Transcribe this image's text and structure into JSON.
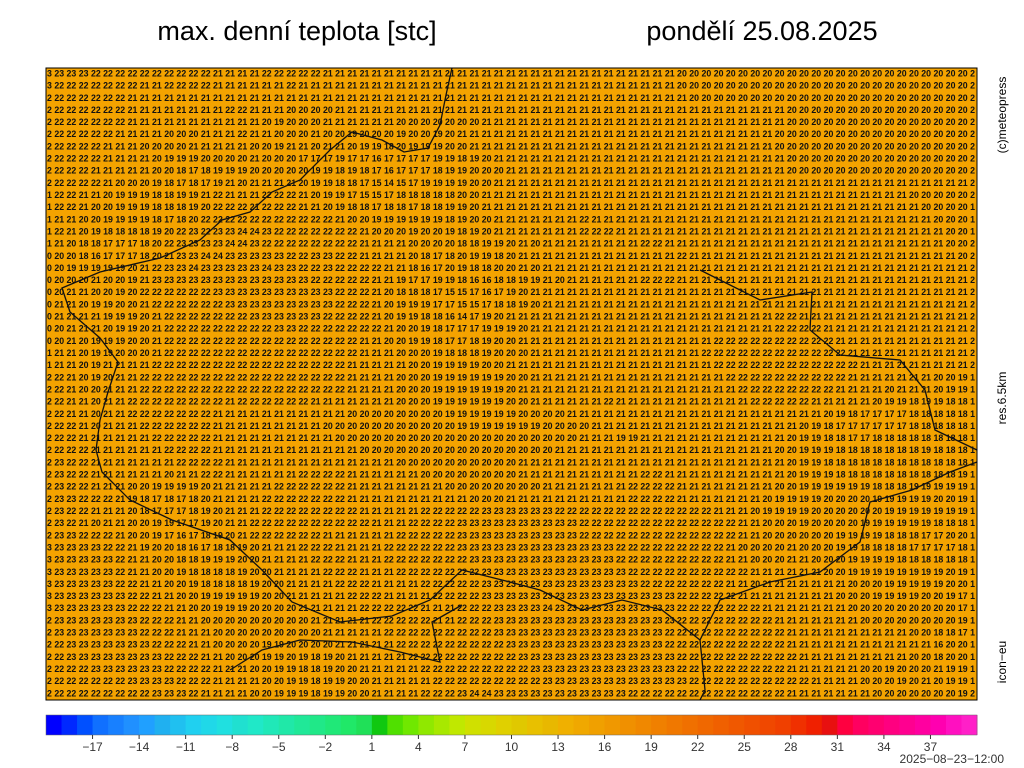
{
  "header": {
    "title": "max. denní teplota [stc]",
    "date": "pondělí 25.08.2025"
  },
  "side_labels": {
    "copyright": "(c)meteopress",
    "resolution": "res.6.5km",
    "model": "icon−eu"
  },
  "run_time": "2025−08−23−12:00",
  "map": {
    "background": "#f4a300",
    "rows": [
      "3 23 23 23 22 22 22 22 22 22 22 22 22 22 21 21 21 21 22 22 22 22 22 21 21 21 21 21 21 21 21 21 21 21 21 21 21 21 21 21 21 21 21 21 21 21 21 21 21 21 21 21 20 20 20 20 20 20 20 20 20 20 20 20 20 20 20 20 20 20 20 20 20 20 20 20 2",
      "3 22 22 22 22 22 22 22 21 21 22 22 22 22 21 21 21 21 21 21 22 21 21 21 21 21 21 21 21 21 21 21 21 21 21 21 21 21 21 21 21 21 21 21 21 21 21 21 21 21 21 21 20 20 20 20 20 20 20 20 20 20 20 20 20 20 20 20 20 20 20 20 20 20 20 20 2",
      "2 22 22 22 22 22 22 21 21 21 21 21 21 21 21 21 21 21 21 21 21 21 21 21 21 21 21 21 21 21 21 21 21 21 21 21 21 21 21 21 21 21 21 21 21 21 21 21 21 21 21 21 21 20 20 20 20 20 20 20 20 20 20 20 20 20 20 20 20 20 20 20 20 20 20 20 2",
      "2 22 22 22 22 22 22 21 21 21 21 21 21 21 21 22 22 21 21 21 20 20 20 20 21 21 21 21 21 21 21 21 21 21 21 21 21 21 21 21 21 21 21 21 21 21 21 21 21 21 21 21 21 21 21 21 21 21 21 21 21 20 20 20 20 20 20 20 20 20 20 20 20 20 20 20 2",
      "2 22 22 22 22 22 22 21 21 21 21 21 21 21 21 21 21 21 20 19 20 20 20 21 21 21 21 21 21 20 20 20 20 20 20 20 21 21 21 21 21 21 21 21 21 21 21 21 21 21 21 21 21 21 21 21 21 21 21 21 21 20 20 20 20 20 20 20 20 20 20 20 20 20 20 20 2",
      "2 22 22 22 22 22 21 21 21 21 20 20 20 21 21 21 22 21 21 20 20 20 21 20 20 19 20 20 20 19 20 20 19 20 21 21 21 21 21 21 21 21 21 21 21 21 21 21 21 21 21 21 21 21 21 21 21 21 21 21 20 20 20 20 20 20 20 20 20 20 20 20 20 20 20 20 2",
      "2 22 22 22 22 21 21 21 20 20 20 20 21 21 21 21 21 20 20 19 21 21 20 21 21 20 19 19 18 20 19 19 19 20 20 21 21 21 21 21 21 21 21 21 21 21 21 21 21 21 21 21 21 21 21 21 21 21 21 21 20 20 20 20 20 20 20 20 20 20 20 20 20 20 20 20 2",
      "2 22 22 22 22 21 21 21 21 20 19 19 19 20 20 20 20 21 20 20 20 17 17 17 19 17 17 16 17 17 17 17 19 19 18 19 20 21 21 21 21 21 21 21 21 21 21 21 21 21 21 21 21 21 21 21 21 21 21 21 21 20 20 20 20 20 20 20 20 20 20 20 20 20 20 20 2",
      "2 22 22 22 21 21 21 21 21 20 20 18 17 18 19 19 19 20 20 20 20 20 19 19 18 19 18 17 16 17 17 17 18 19 19 20 20 20 21 21 21 21 21 21 21 21 21 21 21 21 21 21 21 21 21 21 21 21 21 21 21 20 20 20 20 20 20 20 20 20 20 20 20 20 20 20 2",
      "2 22 22 22 22 21 20 20 20 19 18 17 18 17 19 21 20 21 21 21 21 20 19 19 18 18 17 15 14 15 17 19 19 19 19 20 20 21 21 21 21 21 21 21 21 21 21 21 21 21 21 21 21 21 21 21 21 21 21 21 21 21 21 21 21 21 21 21 21 21 21 21 21 21 21 21 2",
      "1 22 22 21 21 20 19 19 19 18 18 19 19 21 22 21 21 21 22 22 22 21 20 19 19 17 15 15 17 18 18 18 18 18 20 20 21 21 21 21 21 21 21 21 21 21 21 21 21 21 21 21 21 21 21 21 21 21 21 21 21 21 21 21 21 21 21 21 21 21 21 20 20 20 20 20 2",
      "1 22 22 21 20 20 19 19 19 18 18 18 19 20 22 22 22 21 22 22 22 21 21 20 19 18 18 17 18 18 17 18 18 19 19 20 21 21 21 21 21 21 21 21 21 21 21 21 21 21 21 21 21 21 21 21 21 21 21 21 21 21 21 21 21 21 21 21 21 21 21 21 20 20 20 20 1",
      "1 21 21 20 20 19 19 19 19 18 17 18 20 22 22 22 22 22 22 22 22 22 22 22 21 20 20 19 19 19 19 19 19 18 19 20 20 21 21 21 21 21 21 21 22 21 21 21 21 21 21 21 21 21 21 21 21 21 21 21 21 21 21 21 21 21 21 21 21 21 21 21 21 20 20 20 1",
      "1 22 21 20 19 18 18 18 18 19 20 22 23 22 23 23 24 24 23 22 22 22 22 22 22 22 21 20 20 20 19 20 20 19 18 19 20 21 21 21 21 21 21 21 22 22 22 21 21 21 21 21 21 21 21 21 21 21 21 21 21 21 21 21 21 21 21 21 21 21 21 21 21 21 20 20 1",
      "1 21 20 18 18 17 17 17 18 20 22 23 23 23 23 24 24 23 22 22 22 22 22 22 22 22 21 21 21 21 20 20 20 20 18 18 19 19 20 21 20 21 21 21 21 21 21 21 21 22 22 21 21 21 21 21 21 21 21 21 21 21 21 21 21 21 21 21 21 21 21 21 21 21 20 20 2",
      "0 20 20 18 16 17 17 17 18 20 21 23 23 24 24 23 23 23 23 23 22 22 23 23 22 22 21 21 21 21 20 18 17 18 20 19 19 18 20 21 21 21 21 21 21 21 21 21 21 21 21 21 22 21 21 21 21 21 21 21 21 21 21 21 21 21 21 21 21 21 21 21 21 21 21 20 2",
      "0 20 19 19 19 19 19 20 21 22 23 23 24 23 23 23 23 23 24 23 23 22 22 23 22 22 22 22 21 21 18 16 17 20 19 18 18 20 20 21 20 21 21 21 21 21 21 21 21 21 21 21 21 21 21 21 21 21 21 21 21 21 21 21 21 21 21 21 21 21 21 21 21 21 21 21 2",
      "0 20 20 20 21 20 20 19 21 23 23 23 23 23 23 23 23 23 23 23 23 23 22 22 22 22 22 21 21 19 17 17 19 19 18 16 16 18 18 19 19 21 20 21 21 21 21 21 21 22 22 22 21 21 21 21 21 21 21 21 21 21 21 21 21 21 21 21 21 21 21 21 21 21 21 21 2",
      "0 20 21 21 20 20 19 20 22 22 22 22 22 22 23 23 23 23 23 23 23 23 23 23 22 22 22 21 20 18 18 18 17 15 15 17 16 17 19 20 21 21 21 21 21 21 21 21 21 21 21 21 21 21 21 21 21 21 21 21 21 21 21 21 21 21 21 21 21 21 21 21 21 21 21 21 2",
      "0 21 21 20 19 19 20 20 21 22 22 22 22 22 22 23 23 23 23 23 23 23 23 23 22 22 22 21 20 19 19 19 17 17 15 15 17 18 18 19 20 21 21 21 21 21 21 21 21 21 21 21 21 21 21 21 21 21 21 21 21 21 21 21 21 21 21 21 21 21 21 21 21 21 21 21 2",
      "0 21 21 21 21 19 19 19 20 21 22 22 22 22 22 22 22 23 23 23 23 23 23 22 22 22 22 21 20 19 19 18 18 16 14 17 19 20 21 21 21 21 21 21 21 21 21 21 21 21 21 21 21 21 21 21 21 21 21 21 22 22 21 21 21 21 21 21 21 21 21 21 21 21 21 21 2",
      "0 20 21 21 21 20 19 19 20 21 22 22 22 22 22 22 22 22 22 23 23 22 22 22 22 22 22 22 21 20 20 19 18 17 17 17 19 19 19 20 21 21 21 21 21 21 21 21 21 21 21 21 21 21 21 21 21 21 21 21 22 22 22 22 21 21 21 21 21 21 21 21 21 21 21 21 2",
      "0 20 21 20 19 19 19 20 20 21 22 22 22 22 22 22 22 22 22 22 22 22 22 22 22 22 21 21 20 20 19 19 18 17 17 18 19 20 20 21 21 21 21 21 21 21 21 21 21 21 21 21 21 21 21 22 22 22 22 22 22 22 22 22 22 21 21 21 21 21 21 21 21 21 21 21 2",
      "1 21 21 20 19 19 20 20 20 21 22 22 22 22 22 22 22 22 22 22 22 22 22 22 22 22 21 21 21 20 20 20 19 18 18 18 19 20 20 20 21 21 21 21 21 21 21 21 21 21 21 21 21 21 22 22 22 22 22 22 22 22 22 22 22 22 21 21 21 21 21 21 21 21 21 21 2",
      "1 21 21 20 19 21 21 21 21 22 22 22 22 22 22 22 22 22 22 22 22 22 22 22 22 21 21 21 21 21 20 20 19 19 19 19 20 20 21 21 21 21 21 21 21 21 21 21 21 21 21 21 21 21 21 22 22 22 22 22 22 22 22 22 22 22 22 21 21 21 21 21 21 21 21 21 2",
      "2 22 21 20 19 20 21 21 22 22 22 22 22 22 22 22 22 22 22 22 22 22 22 22 22 21 21 21 21 20 20 20 19 19 19 19 19 19 20 20 21 21 21 21 21 21 21 21 21 21 21 21 21 21 21 21 22 22 22 22 22 22 22 22 22 22 21 21 21 21 21 21 21 20 20 19 1",
      "2 22 21 20 20 21 21 21 22 22 22 22 22 22 22 22 22 22 22 22 22 22 22 22 22 21 21 21 21 20 20 20 19 19 19 19 19 19 20 21 21 21 21 21 21 21 21 21 21 21 21 21 21 21 21 21 21 22 22 22 22 22 22 22 22 21 21 21 21 20 21 21 21 20 19 19 1",
      "2 22 21 21 20 21 21 22 22 22 22 22 22 22 22 21 22 22 22 22 22 22 21 21 21 21 21 21 21 20 20 20 19 19 19 19 19 19 20 20 21 21 21 21 21 21 22 21 21 21 21 21 21 21 21 21 21 21 22 22 22 22 22 21 21 21 21 21 20 19 19 18 19 19 18 18 1",
      "2 22 21 21 20 21 21 22 22 22 22 22 22 22 21 21 21 21 21 21 21 21 21 21 21 20 20 20 20 20 20 20 20 19 19 19 19 19 19 20 20 20 20 21 21 21 21 21 21 21 21 21 21 21 21 21 21 21 21 21 21 21 21 21 20 19 18 17 17 17 17 18 18 18 18 18 1",
      "2 22 22 21 20 21 21 21 22 22 22 22 22 22 21 21 21 21 21 21 21 21 21 20 20 20 20 20 20 20 20 20 20 20 19 19 19 19 19 19 19 20 20 20 20 21 21 21 21 21 21 21 21 21 21 21 21 21 21 21 21 21 20 19 18 17 17 17 17 17 17 18 18 18 18 18 1",
      "2 22 22 21 21 21 21 21 21 22 22 22 22 22 21 21 21 21 21 21 21 21 21 21 20 20 20 20 20 20 20 20 20 20 20 20 20 20 20 20 20 20 20 20 21 21 21 19 19 21 21 21 21 21 21 21 21 21 21 21 21 20 19 19 18 18 17 17 18 18 18 18 18 18 18 18 1",
      "2 22 22 22 21 21 21 21 21 21 22 22 22 22 21 21 21 21 21 21 21 21 21 21 21 21 20 20 20 20 20 20 20 20 20 20 20 20 20 20 20 20 21 21 21 21 21 21 21 21 21 21 21 21 21 21 21 21 21 21 20 20 19 19 19 18 18 18 18 18 18 18 19 18 18 18 1",
      "2 23 22 22 21 21 21 21 21 21 21 22 22 22 22 21 21 21 21 21 21 21 21 21 21 21 21 21 21 20 20 20 20 20 20 20 20 20 20 21 21 21 21 21 21 21 21 21 21 21 21 21 21 21 21 21 21 21 21 21 21 20 19 19 18 18 18 18 18 18 18 18 18 18 18 18 1",
      "2 23 22 22 21 21 21 21 21 21 20 21 21 22 22 21 21 21 21 21 21 22 22 22 22 21 21 21 21 21 21 20 20 20 20 20 20 20 20 21 21 21 21 21 21 21 21 21 21 22 22 21 21 21 21 21 21 21 21 21 21 20 19 19 19 18 18 18 18 18 18 18 18 18 18 19 1",
      "2 23 22 22 21 21 21 20 20 19 19 19 19 20 21 21 21 21 21 22 22 22 22 22 22 21 21 21 21 21 21 21 21 20 20 20 20 20 20 20 20 21 21 21 21 21 21 21 22 22 22 22 21 21 21 21 21 21 21 21 20 20 19 19 19 19 19 19 18 18 18 19 19 19 19 19 1",
      "2 23 23 22 22 22 21 19 18 17 18 17 18 20 21 21 21 21 22 22 22 22 22 22 22 21 21 21 21 21 21 21 21 21 21 20 20 20 21 21 21 21 21 21 21 21 21 21 22 22 22 22 21 21 21 21 21 21 21 20 19 19 19 19 20 20 20 20 19 19 19 19 19 20 20 19 1",
      "2 23 22 22 21 21 21 20 18 17 17 17 18 19 20 21 21 21 22 22 22 22 22 22 22 22 21 21 21 21 21 22 22 22 22 22 23 23 23 23 23 23 22 22 22 22 22 22 22 22 22 22 22 22 22 21 21 21 20 19 19 19 19 20 20 20 20 20 20 19 19 19 19 19 19 19 1",
      "2 23 22 21 20 21 21 20 20 19 19 17 17 19 20 21 21 22 22 22 22 22 22 22 22 22 22 21 21 21 22 22 22 22 23 23 23 23 23 23 23 23 23 23 22 22 22 22 22 22 22 22 22 22 22 22 22 21 21 20 20 20 19 20 20 20 20 19 19 19 19 19 19 18 18 18 1",
      "2 23 23 22 22 22 21 20 20 19 17 16 17 18 19 20 21 22 22 22 22 22 22 21 21 21 21 21 21 22 22 22 22 22 23 23 23 23 23 23 23 23 23 23 22 22 22 22 22 22 22 22 22 22 22 22 22 21 21 20 20 20 20 20 20 19 19 19 19 18 18 18 17 17 20 20 1",
      "3 23 23 23 23 22 22 21 19 20 20 18 16 17 18 18 19 20 21 21 21 22 22 22 21 21 21 21 22 22 22 22 22 22 23 23 23 23 23 23 23 23 23 23 23 23 23 22 22 22 22 22 22 22 22 22 21 20 20 20 20 21 20 20 20 19 19 18 18 18 18 17 17 17 17 18 1",
      "3 23 23 23 23 23 22 21 21 20 20 18 18 19 19 19 20 20 21 21 21 21 22 22 22 21 21 21 22 22 22 22 22 22 22 23 23 23 23 23 23 23 23 23 23 23 23 22 22 22 22 22 22 22 22 22 21 21 20 20 20 21 21 20 20 20 19 19 19 19 18 18 18 18 18 18 1",
      "3 23 23 23 23 23 22 21 21 20 20 19 18 18 18 18 19 20 20 21 21 21 21 22 22 22 21 21 21 22 22 22 22 22 22 22 23 23 23 23 23 23 23 23 23 23 23 23 22 22 22 22 22 22 22 22 22 22 21 21 21 21 21 21 20 20 19 19 19 19 19 19 19 19 20 19 1",
      "3 23 23 23 23 23 22 22 21 21 20 20 19 18 18 18 18 19 20 20 21 21 21 21 22 22 22 21 21 21 21 22 22 22 22 22 23 23 23 23 23 23 23 23 23 23 23 23 23 22 22 22 22 22 22 22 21 21 20 21 21 21 21 21 21 21 20 20 20 19 19 19 19 19 20 20 1",
      "3 23 23 23 23 23 23 22 22 21 21 20 20 19 19 19 19 19 20 20 21 21 21 21 21 22 22 22 21 21 21 21 22 22 22 22 23 23 23 23 23 23 23 23 23 23 23 23 23 23 23 23 22 22 22 22 22 21 21 21 21 21 21 21 21 20 20 20 19 19 19 19 20 20 19 17 1",
      "3 23 23 23 23 23 23 22 22 22 21 21 20 20 19 19 19 20 20 20 20 21 21 21 21 21 22 22 22 22 22 21 21 21 22 22 22 23 23 23 23 24 23 23 23 23 23 23 23 23 23 23 22 22 22 22 22 22 22 21 21 21 21 21 21 21 20 20 20 20 20 20 20 20 20 17 1",
      "2 23 23 23 23 23 23 23 22 22 22 21 21 20 20 20 20 20 20 20 20 20 21 21 21 21 21 22 22 22 22 22 21 21 22 22 22 23 23 23 23 23 23 23 23 23 23 23 23 23 23 23 22 22 22 22 22 22 22 22 21 21 21 21 21 21 21 20 20 20 20 20 20 20 20 19 1",
      "2 23 23 23 23 23 23 23 22 22 22 21 21 21 20 20 20 20 20 20 20 20 20 21 21 21 21 21 22 22 22 22 22 22 22 22 22 23 23 23 23 23 23 23 23 23 23 23 23 23 23 22 22 22 22 22 22 22 22 22 22 21 21 21 21 21 21 21 21 21 21 20 20 18 18 17 1",
      "2 22 23 23 23 23 23 23 23 22 22 22 21 21 20 20 20 20 19 19 20 20 20 20 21 21 21 21 21 22 22 22 22 22 22 22 22 22 23 23 23 23 23 23 23 23 23 23 23 23 23 22 22 22 22 22 22 22 22 22 22 21 21 21 21 21 21 21 21 21 21 21 21 16 20 20 1",
      "2 22 23 23 23 23 23 23 23 23 22 22 22 21 21 20 20 20 19 19 20 19 18 19 20 21 21 21 21 21 22 22 22 22 22 22 22 22 22 23 23 23 23 23 23 23 23 23 23 23 23 23 22 22 22 22 22 22 22 22 22 22 21 21 21 21 21 21 21 21 21 20 20 18 20 20 1",
      "2 22 22 22 23 23 23 23 23 23 22 22 22 22 21 21 21 20 20 19 19 18 18 19 20 20 21 21 21 21 21 22 22 22 22 22 22 22 22 22 23 23 23 23 23 23 23 23 23 23 23 23 22 22 22 22 22 22 22 22 22 21 21 21 21 21 21 20 20 19 20 20 20 21 19 19 1",
      "2 22 22 22 22 22 22 23 23 23 23 22 22 22 21 21 21 21 20 20 19 19 18 19 19 20 20 21 21 21 21 21 22 22 22 22 22 22 22 22 22 23 23 23 23 23 23 23 23 23 23 23 23 22 22 22 22 22 22 22 22 22 22 21 21 21 21 20 20 20 19 20 21 20 19 19 1",
      "2 22 22 22 22 22 22 22 22 23 23 23 22 21 21 21 21 20 20 19 19 19 18 19 19 20 20 21 21 21 21 22 22 22 23 24 24 23 23 23 23 23 23 23 23 23 23 23 22 22 22 22 22 22 22 22 22 22 22 22 22 21 21 21 21 21 21 21 20 20 20 20 20 20 20 19 2"
    ]
  },
  "colorbar": {
    "colors": [
      "#0000ff",
      "#0028ff",
      "#0050ff",
      "#1070ff",
      "#1880ff",
      "#2090ff",
      "#20a0ff",
      "#20b0f0",
      "#20c0f0",
      "#20d0f0",
      "#20d8e8",
      "#20e0e0",
      "#20e0d0",
      "#20e8c8",
      "#20e8b8",
      "#20e8a8",
      "#20e898",
      "#20e888",
      "#20e878",
      "#20e868",
      "#20e058",
      "#10c810",
      "#50e000",
      "#70e800",
      "#90e800",
      "#a8e800",
      "#c0e800",
      "#d0e000",
      "#d8d800",
      "#e0d000",
      "#e0c800",
      "#e8c000",
      "#e8b800",
      "#f0b000",
      "#f0a800",
      "#f0a000",
      "#f09800",
      "#f09000",
      "#f08800",
      "#f08000",
      "#f07800",
      "#f07000",
      "#f06800",
      "#f06000",
      "#f05800",
      "#f05000",
      "#f04800",
      "#f04000",
      "#f03000",
      "#f02000",
      "#e81010",
      "#ff0040",
      "#ff0060",
      "#ff0070",
      "#ff0080",
      "#ff0090",
      "#ff00a0",
      "#ff00b0",
      "#ff10c0",
      "#ff20c8"
    ],
    "lim": [
      -20,
      40
    ],
    "ticks": [
      {
        "value": -17,
        "label": "−17"
      },
      {
        "value": -14,
        "label": "−14"
      },
      {
        "value": -11,
        "label": "−11"
      },
      {
        "value": -8,
        "label": "−8"
      },
      {
        "value": -5,
        "label": "−5"
      },
      {
        "value": -2,
        "label": "−2"
      },
      1,
      4,
      7,
      10,
      13,
      16,
      19,
      22,
      25,
      28,
      31,
      34,
      37
    ]
  }
}
